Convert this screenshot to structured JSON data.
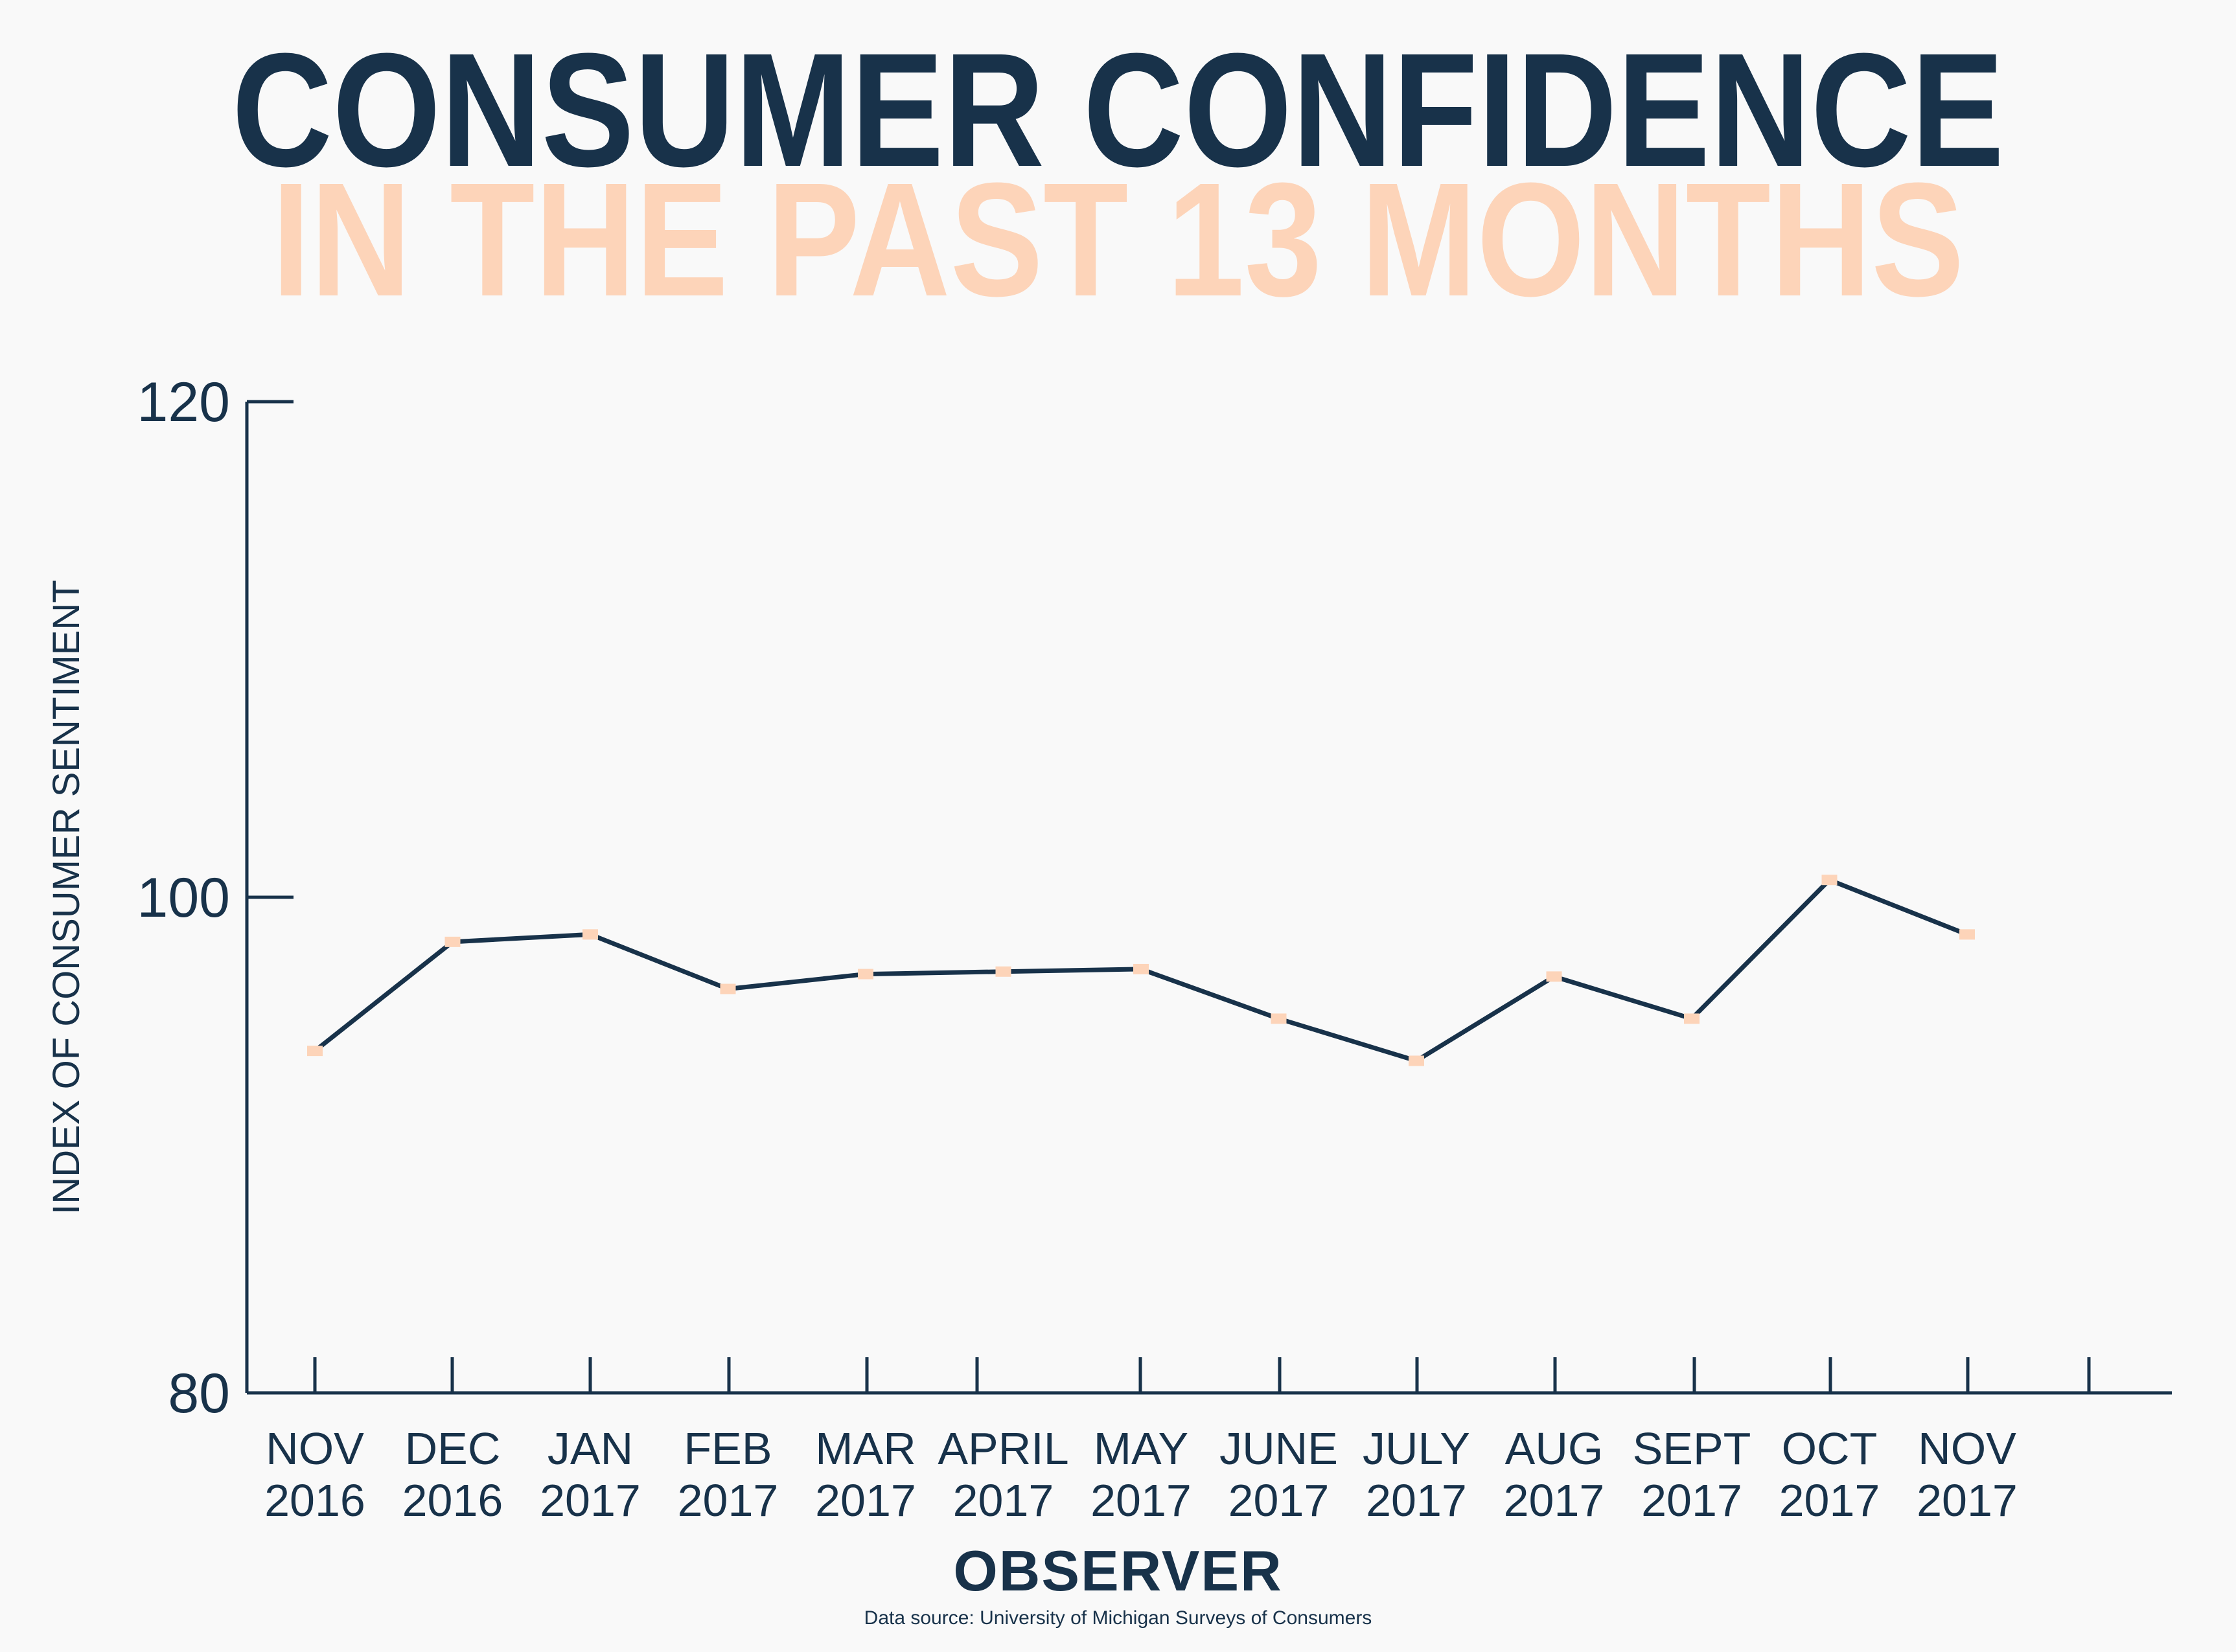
{
  "header": {
    "title": "CONSUMER CONFIDENCE",
    "subtitle": "IN THE PAST 13 MONTHS"
  },
  "footer": {
    "brand": "OBSERVER",
    "source": "Data source: University of Michigan Surveys of Consumers"
  },
  "colors": {
    "title": "#18324a",
    "subtitle": "#fdd4b9",
    "line": "#18324a",
    "marker": "#fdd4b9",
    "axis": "#18324a",
    "background": "#f9f9f9"
  },
  "chart_data": {
    "type": "line",
    "title": "CONSUMER CONFIDENCE",
    "subtitle": "IN THE PAST 13 MONTHS",
    "xlabel": "",
    "ylabel": "INDEX OF CONSUMER SENTIMENT",
    "ylim": [
      80,
      120
    ],
    "yticks": [
      80,
      100,
      120
    ],
    "grid": false,
    "legend": "none",
    "categories": [
      [
        "NOV",
        "2016"
      ],
      [
        "DEC",
        "2016"
      ],
      [
        "JAN",
        "2017"
      ],
      [
        "FEB",
        "2017"
      ],
      [
        "MAR",
        "2017"
      ],
      [
        "APRIL",
        "2017"
      ],
      [
        "MAY",
        "2017"
      ],
      [
        "JUNE",
        "2017"
      ],
      [
        "JULY",
        "2017"
      ],
      [
        "AUG",
        "2017"
      ],
      [
        "SEPT",
        "2017"
      ],
      [
        "OCT",
        "2017"
      ],
      [
        "NOV",
        "2017"
      ]
    ],
    "series": [
      {
        "values": [
          93.8,
          98.2,
          98.5,
          96.3,
          96.9,
          97.0,
          97.1,
          95.1,
          93.4,
          96.8,
          95.1,
          100.7,
          98.5
        ]
      }
    ]
  }
}
